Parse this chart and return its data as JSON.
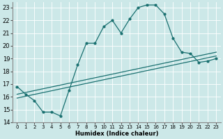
{
  "xlabel": "Humidex (Indice chaleur)",
  "xlim": [
    -0.5,
    23.5
  ],
  "ylim": [
    14,
    23.4
  ],
  "yticks": [
    14,
    15,
    16,
    17,
    18,
    19,
    20,
    21,
    22,
    23
  ],
  "xticks": [
    0,
    1,
    2,
    3,
    4,
    5,
    6,
    7,
    8,
    9,
    10,
    11,
    12,
    13,
    14,
    15,
    16,
    17,
    18,
    19,
    20,
    21,
    22,
    23
  ],
  "bg_color": "#cce8e8",
  "line_color": "#1a7070",
  "line1_x": [
    0,
    1,
    2,
    3,
    4,
    5,
    6,
    7,
    8,
    9,
    10,
    11,
    12,
    13,
    14,
    15,
    16,
    17,
    18,
    19,
    20,
    21,
    22,
    23
  ],
  "line1_y": [
    16.8,
    16.2,
    15.7,
    14.8,
    14.8,
    14.5,
    16.5,
    18.5,
    20.2,
    20.2,
    21.5,
    22.0,
    21.0,
    22.1,
    23.0,
    23.2,
    23.2,
    22.5,
    20.6,
    19.5,
    19.4,
    18.7,
    18.8,
    19.0
  ],
  "line2_x": [
    0,
    23
  ],
  "line2_y": [
    15.9,
    19.2
  ],
  "line3_x": [
    0,
    23
  ],
  "line3_y": [
    16.2,
    19.5
  ],
  "grid_color": "#ffffff",
  "grid_linewidth": 0.6
}
